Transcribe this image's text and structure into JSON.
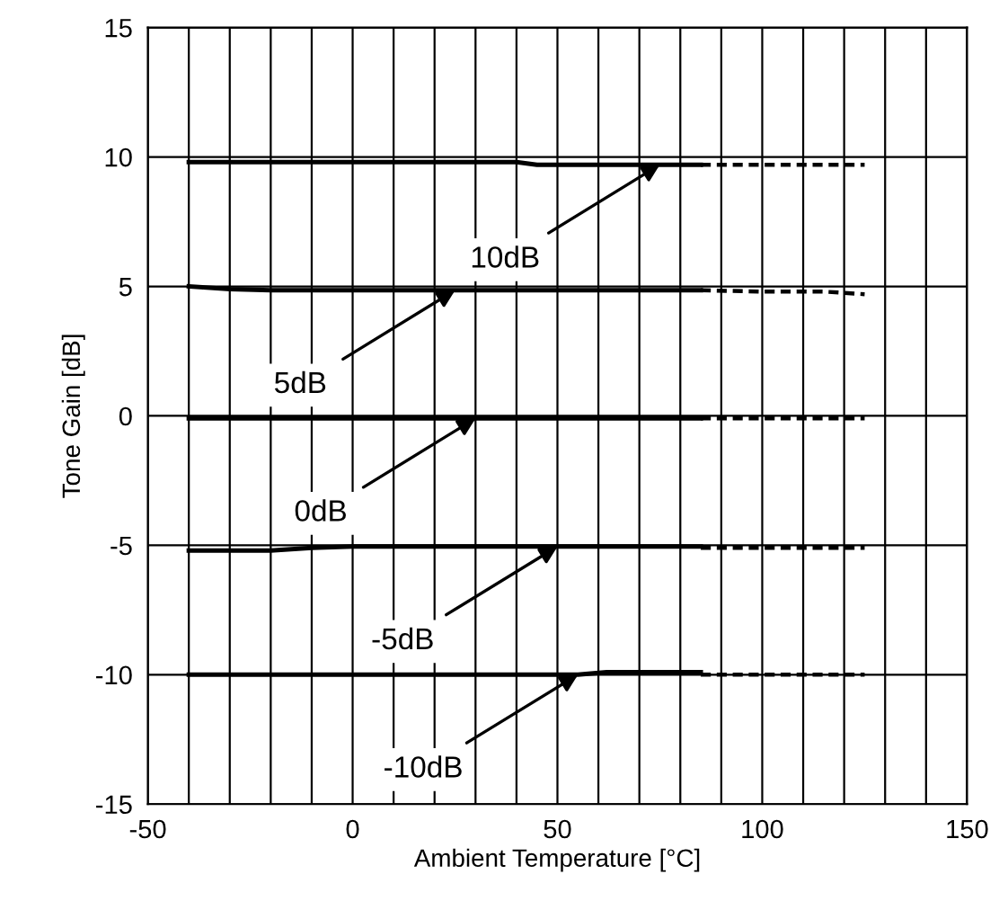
{
  "chart_data": {
    "type": "line",
    "xlabel": "Ambient Temperature [°C]",
    "ylabel": "Tone Gain [dB]",
    "xlim": [
      -50,
      150
    ],
    "ylim": [
      -15,
      15
    ],
    "xticks": [
      -50,
      {
        "value": -40,
        "label": null
      },
      {
        "value": -30,
        "label": null
      },
      {
        "value": -20,
        "label": null
      },
      {
        "value": -10,
        "label": null
      },
      0,
      {
        "value": 10,
        "label": null
      },
      {
        "value": 20,
        "label": null
      },
      {
        "value": 30,
        "label": null
      },
      {
        "value": 40,
        "label": null
      },
      50,
      {
        "value": 60,
        "label": null
      },
      {
        "value": 70,
        "label": null
      },
      {
        "value": 80,
        "label": null
      },
      {
        "value": 90,
        "label": null
      },
      100,
      {
        "value": 110,
        "label": null
      },
      {
        "value": 120,
        "label": null
      },
      {
        "value": 130,
        "label": null
      },
      {
        "value": 140,
        "label": null
      },
      150
    ],
    "yticks": [
      -15,
      -10,
      -5,
      0,
      5,
      10,
      15
    ],
    "grid": true,
    "legend": false,
    "marker": "none",
    "series": [
      {
        "color": "#000000",
        "line_style": "solid",
        "x": [
          -40,
          -20,
          0,
          20,
          40,
          45,
          60,
          85
        ],
        "values": [
          9.8,
          9.8,
          9.8,
          9.8,
          9.8,
          9.7,
          9.7,
          9.7
        ]
      },
      {
        "color": "#000000",
        "line_style": "dashed",
        "x": [
          85,
          100,
          125
        ],
        "values": [
          9.7,
          9.7,
          9.7
        ]
      },
      {
        "color": "#000000",
        "line_style": "solid",
        "x": [
          -40,
          -30,
          -20,
          0,
          40,
          85
        ],
        "values": [
          5.0,
          4.9,
          4.85,
          4.85,
          4.85,
          4.85
        ]
      },
      {
        "color": "#000000",
        "line_style": "dashed",
        "x": [
          85,
          100,
          115,
          120,
          125
        ],
        "values": [
          4.85,
          4.8,
          4.8,
          4.75,
          4.7
        ]
      },
      {
        "color": "#000000",
        "line_style": "solid",
        "x": [
          -40,
          0,
          40,
          85
        ],
        "values": [
          -0.1,
          -0.1,
          -0.1,
          -0.1
        ]
      },
      {
        "color": "#000000",
        "line_style": "dashed",
        "x": [
          85,
          100,
          125
        ],
        "values": [
          -0.1,
          -0.1,
          -0.1
        ]
      },
      {
        "color": "#000000",
        "line_style": "solid",
        "x": [
          -40,
          -20,
          -10,
          0,
          40,
          85
        ],
        "values": [
          -5.2,
          -5.2,
          -5.1,
          -5.05,
          -5.05,
          -5.05
        ]
      },
      {
        "color": "#000000",
        "line_style": "dashed",
        "x": [
          85,
          100,
          125
        ],
        "values": [
          -5.1,
          -5.1,
          -5.1
        ]
      },
      {
        "color": "#000000",
        "line_style": "solid",
        "x": [
          -40,
          0,
          55,
          62,
          70,
          85
        ],
        "values": [
          -10.0,
          -10.0,
          -10.0,
          -9.9,
          -9.9,
          -9.9
        ]
      },
      {
        "color": "#000000",
        "line_style": "dashed",
        "x": [
          85,
          100,
          125
        ],
        "values": [
          -10.0,
          -10.0,
          -10.0
        ]
      }
    ],
    "annotations": [
      {
        "text": "10dB",
        "x": 75,
        "y": 9.7
      },
      {
        "text": "5dB",
        "x": 25,
        "y": 4.85
      },
      {
        "text": "0dB",
        "x": 30,
        "y": -0.1
      },
      {
        "text": "-5dB",
        "x": 50,
        "y": -5.05
      },
      {
        "text": "-10dB",
        "x": 55,
        "y": -10.0
      }
    ]
  }
}
